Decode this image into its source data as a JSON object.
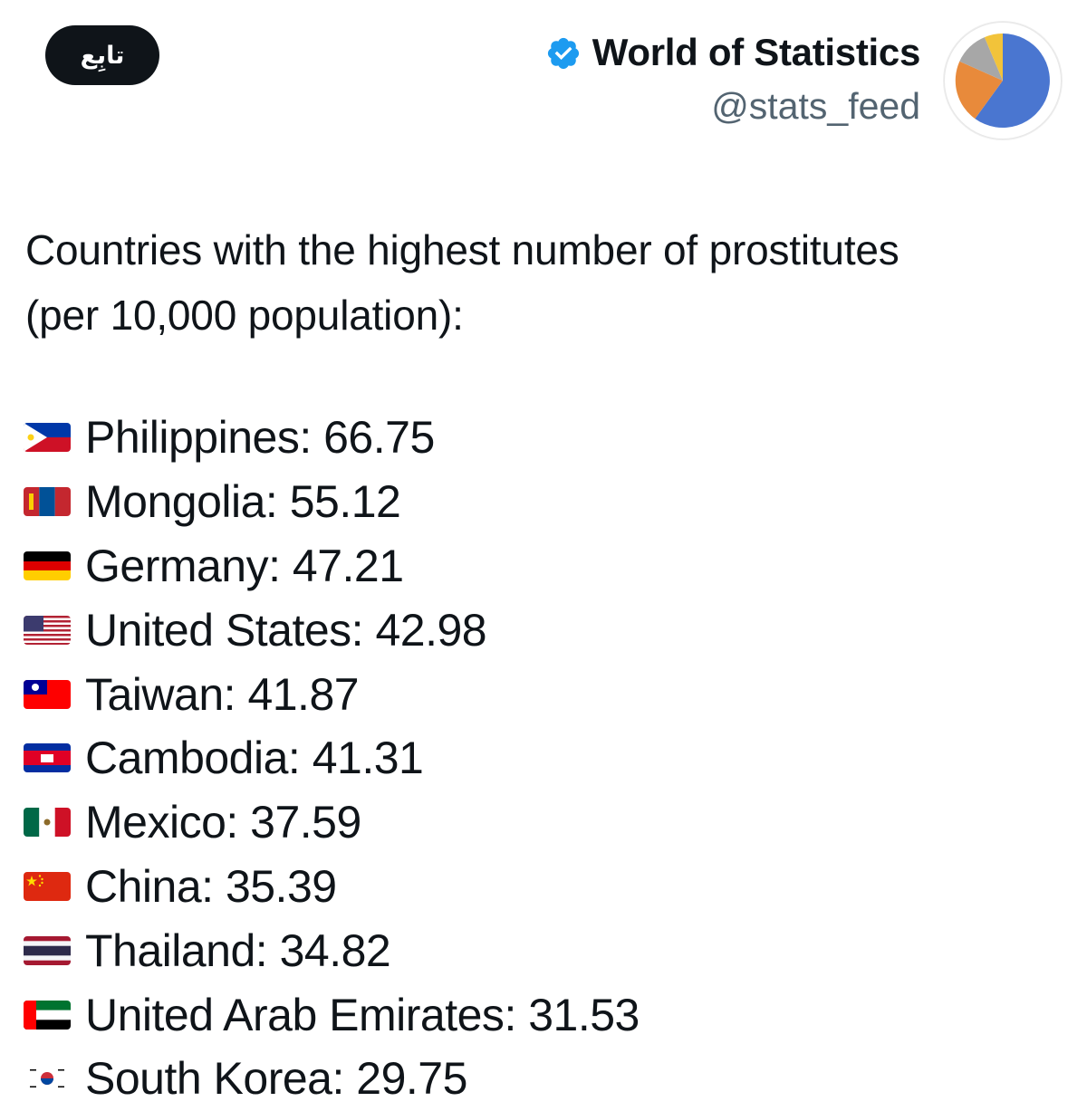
{
  "follow_button": {
    "label": "تابِع"
  },
  "account": {
    "display_name": "World of Statistics",
    "handle": "@stats_feed",
    "avatar_icon": "pie-chart-icon",
    "verified_icon": "verified-badge-icon",
    "verified_color": "#1d9bf0",
    "avatar_colors": [
      "#4a76d0",
      "#e88a3b",
      "#a7a7a7",
      "#f2c33a"
    ]
  },
  "tweet": {
    "heading": "Countries with the highest number of prostitutes",
    "subheading": "(per 10,000 population):",
    "items": [
      {
        "flag": "philippines-flag-icon",
        "country": "Philippines",
        "value": "66.75"
      },
      {
        "flag": "mongolia-flag-icon",
        "country": "Mongolia",
        "value": "55.12"
      },
      {
        "flag": "germany-flag-icon",
        "country": "Germany",
        "value": "47.21"
      },
      {
        "flag": "united-states-flag-icon",
        "country": "United States",
        "value": "42.98"
      },
      {
        "flag": "taiwan-flag-icon",
        "country": "Taiwan",
        "value": "41.87"
      },
      {
        "flag": "cambodia-flag-icon",
        "country": "Cambodia",
        "value": "41.31"
      },
      {
        "flag": "mexico-flag-icon",
        "country": "Mexico",
        "value": "37.59"
      },
      {
        "flag": "china-flag-icon",
        "country": "China",
        "value": "35.39"
      },
      {
        "flag": "thailand-flag-icon",
        "country": "Thailand",
        "value": "34.82"
      },
      {
        "flag": "uae-flag-icon",
        "country": "United Arab Emirates",
        "value": "31.53"
      },
      {
        "flag": "south-korea-flag-icon",
        "country": "South Korea",
        "value": "29.75"
      }
    ]
  }
}
